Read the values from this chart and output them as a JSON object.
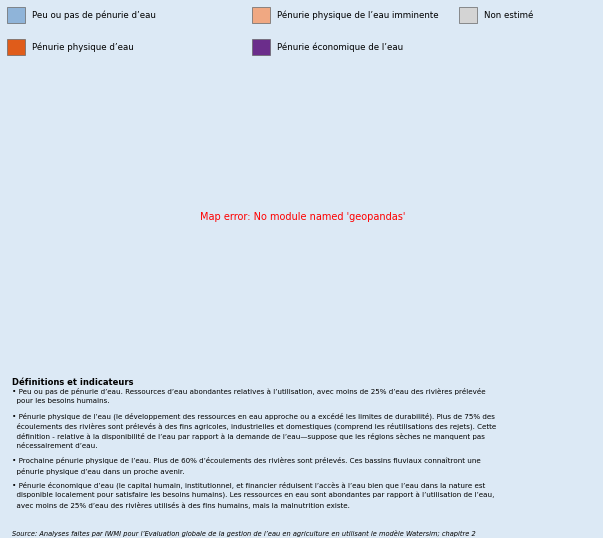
{
  "background_color": "#dce9f5",
  "map_area_bg": "#c8ddf0",
  "ocean_color": "#c8ddf0",
  "legend": [
    {
      "label": "Peu ou pas de pénurie d’eau",
      "color": "#8fb4d9",
      "row": 0,
      "col": 0
    },
    {
      "label": "Pénurie physique de l’eau imminente",
      "color": "#f0a882",
      "row": 0,
      "col": 1
    },
    {
      "label": "Non estimé",
      "color": "#d4d4d4",
      "row": 0,
      "col": 2
    },
    {
      "label": "Pénurie physique d’eau",
      "color": "#e05c1a",
      "row": 1,
      "col": 0
    },
    {
      "label": "Pénurie économique de l’eau",
      "color": "#6b2d8b",
      "row": 1,
      "col": 1
    }
  ],
  "color_blue": "#8fb4d9",
  "color_orange": "#e05c1a",
  "color_light_orange": "#f0a882",
  "color_purple": "#6b2d8b",
  "color_grey": "#d4d4d4",
  "country_colors": {
    "Canada": "blue",
    "United States of America": "blue",
    "Mexico": "orange",
    "Guatemala": "orange",
    "Belize": "blue",
    "Honduras": "blue",
    "El Salvador": "orange",
    "Nicaragua": "blue",
    "Costa Rica": "blue",
    "Panama": "blue",
    "Cuba": "blue",
    "Jamaica": "blue",
    "Haiti": "blue",
    "Dominican Rep.": "blue",
    "Puerto Rico": "orange",
    "Trinidad and Tobago": "blue",
    "Colombia": "blue",
    "Venezuela": "blue",
    "Guyana": "blue",
    "Suriname": "blue",
    "Brazil": "blue",
    "Ecuador": "blue",
    "Peru": "blue",
    "Bolivia": "blue",
    "Chile": "blue",
    "Argentina": "blue",
    "Uruguay": "blue",
    "Paraguay": "blue",
    "Greenland": "grey",
    "Iceland": "blue",
    "United Kingdom": "blue",
    "Ireland": "blue",
    "Norway": "blue",
    "Sweden": "blue",
    "Finland": "blue",
    "Denmark": "blue",
    "Germany": "blue",
    "Netherlands": "blue",
    "Belgium": "blue",
    "Luxembourg": "blue",
    "France": "blue",
    "Switzerland": "blue",
    "Austria": "blue",
    "Portugal": "blue",
    "Spain": "blue",
    "Italy": "blue",
    "Greece": "blue",
    "Poland": "blue",
    "Czech Rep.": "blue",
    "Slovakia": "blue",
    "Hungary": "blue",
    "Romania": "blue",
    "Bulgaria": "blue",
    "Serbia": "blue",
    "Croatia": "blue",
    "Bosnia and Herz.": "blue",
    "Slovenia": "blue",
    "Albania": "blue",
    "Macedonia": "blue",
    "Montenegro": "blue",
    "Kosovo": "blue",
    "Moldova": "blue",
    "Ukraine": "blue",
    "Belarus": "blue",
    "Lithuania": "blue",
    "Latvia": "blue",
    "Estonia": "blue",
    "Russia": "blue",
    "Turkey": "orange",
    "Syria": "orange",
    "Lebanon": "orange",
    "Israel": "orange",
    "Jordan": "orange",
    "Cyprus": "orange",
    "Iraq": "orange",
    "Iran": "orange",
    "Kuwait": "orange",
    "Saudi Arabia": "orange",
    "Yemen": "orange",
    "Oman": "orange",
    "United Arab Emirates": "orange",
    "Qatar": "orange",
    "Bahrain": "orange",
    "Afghanistan": "orange",
    "Pakistan": "orange",
    "India": "orange",
    "Nepal": "light_orange",
    "Bhutan": "light_orange",
    "Bangladesh": "light_orange",
    "Sri Lanka": "light_orange",
    "Myanmar": "light_orange",
    "Thailand": "light_orange",
    "Laos": "light_orange",
    "Vietnam": "light_orange",
    "Cambodia": "light_orange",
    "Malaysia": "blue",
    "Indonesia": "blue",
    "Philippines": "light_orange",
    "China": "blue",
    "Mongolia": "grey",
    "North Korea": "blue",
    "South Korea": "blue",
    "Japan": "blue",
    "Taiwan": "blue",
    "Kazakhstan": "blue",
    "Uzbekistan": "orange",
    "Turkmenistan": "orange",
    "Tajikistan": "orange",
    "Kyrgyzstan": "blue",
    "Azerbaijan": "orange",
    "Armenia": "orange",
    "Georgia": "blue",
    "Egypt": "orange",
    "Libya": "orange",
    "Tunisia": "orange",
    "Algeria": "orange",
    "Morocco": "orange",
    "W. Sahara": "grey",
    "Mauritania": "grey",
    "Mali": "purple",
    "Niger": "purple",
    "Chad": "purple",
    "Sudan": "orange",
    "South Sudan": "purple",
    "Ethiopia": "purple",
    "Eritrea": "grey",
    "Djibouti": "grey",
    "Somalia": "grey",
    "Kenya": "purple",
    "Uganda": "purple",
    "Rwanda": "purple",
    "Burundi": "purple",
    "Tanzania": "purple",
    "Mozambique": "purple",
    "Malawi": "purple",
    "Zambia": "purple",
    "Zimbabwe": "purple",
    "Botswana": "grey",
    "Namibia": "grey",
    "South Africa": "light_orange",
    "Lesotho": "grey",
    "Swaziland": "grey",
    "eSwatini": "grey",
    "Angola": "grey",
    "Dem. Rep. Congo": "purple",
    "Congo": "purple",
    "Gabon": "grey",
    "Cameroon": "purple",
    "Eq. Guinea": "grey",
    "Central African Rep.": "purple",
    "Nigeria": "purple",
    "Benin": "purple",
    "Togo": "purple",
    "Ghana": "purple",
    "Ivory Coast": "purple",
    "Côte d'Ivoire": "purple",
    "Liberia": "purple",
    "Sierra Leone": "purple",
    "Guinea": "purple",
    "Guinea-Bissau": "purple",
    "Senegal": "purple",
    "Gambia": "purple",
    "The Gambia": "purple",
    "Burkina Faso": "purple",
    "Cabo Verde": "purple",
    "Cape Verde": "purple",
    "Madagascar": "light_orange",
    "Australia": "grey",
    "New Zealand": "blue",
    "Papua New Guinea": "blue",
    "Fiji": "blue",
    "Solomon Is.": "blue"
  },
  "bullet_points": [
    "• Peu ou pas de pénurie d’eau. Ressources d’eau abondantes relatives à l’utilisation, avec moins de 25% d’eau des rivières prélevée\npour les besoins humains.",
    "• Pénurie physique de l’eau (le développement des ressources en eau approche ou a excédé les limites de durabilité). Plus de 75% des\nécoulements des rivières sont prélevés à des fins agricoles, industrielles et domestiques (comprend les réutilisations des rejets). Cette\ndéfinition - relative à la disponibilité de l’eau par rapport à la demande de l’eau—suppose que les régions sèches ne manquent pas\nnécessairement d’eau.",
    "• Prochaine pénurie physique de l’eau. Plus de 60% d’écoulements des rivières sont prélevés. Ces bassins fluviaux connaîtront une\npénurie physique d’eau dans un proche avenir.",
    "• Pénurie économique d’eau (le capital humain, institutionnel, et financier réduisent l’accès à l’eau bien que l’eau dans la nature est\ndisponible localement pour satisfaire les besoins humains). Les ressources en eau sont abondantes par rapport à l’utilisation de l’eau,\navec moins de 25% d’eau des rivières utilisés à des fins humains, mais la malnutrition existe."
  ],
  "source_text": "Source: Analyses faites par IWMI pour l’Evaluation globale de la gestion de l’eau en agriculture en utilisant le modèle Watersim; chapitre 2",
  "definitions_title": "Définitions et indicateurs",
  "figure_width": 6.03,
  "figure_height": 5.38,
  "dpi": 100
}
